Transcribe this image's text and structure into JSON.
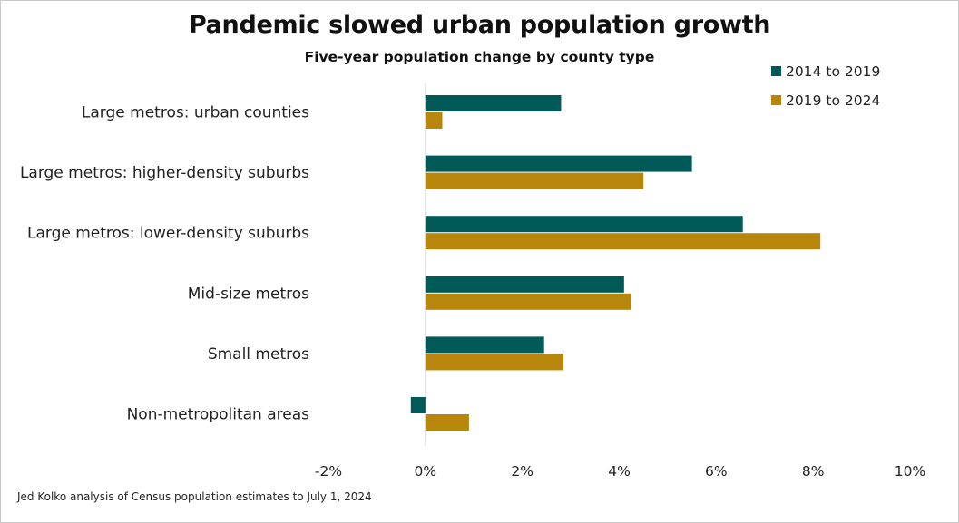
{
  "chart_data": {
    "type": "bar",
    "orientation": "horizontal",
    "title": "Pandemic slowed urban population growth",
    "subtitle": "Five-year population change by county type",
    "categories": [
      "Large metros: urban counties",
      "Large metros: higher-density suburbs",
      "Large metros: lower-density suburbs",
      "Mid-size metros",
      "Small metros",
      "Non-metropolitan areas"
    ],
    "series": [
      {
        "name": "2014 to 2019",
        "color": "#005a58",
        "values": [
          2.8,
          5.5,
          6.55,
          4.1,
          2.45,
          -0.3
        ]
      },
      {
        "name": "2019 to 2024",
        "color": "#b8860b",
        "values": [
          0.35,
          4.5,
          8.15,
          4.25,
          2.85,
          0.9
        ]
      }
    ],
    "xlim": [
      -2,
      10
    ],
    "x_ticks": [
      -2,
      0,
      2,
      4,
      6,
      8,
      10
    ],
    "x_tick_labels": [
      "-2%",
      "0%",
      "2%",
      "4%",
      "6%",
      "8%",
      "10%"
    ],
    "grid": false,
    "legend_position": "top-right"
  },
  "source_note": "Jed Kolko analysis of Census population estimates to July 1, 2024"
}
